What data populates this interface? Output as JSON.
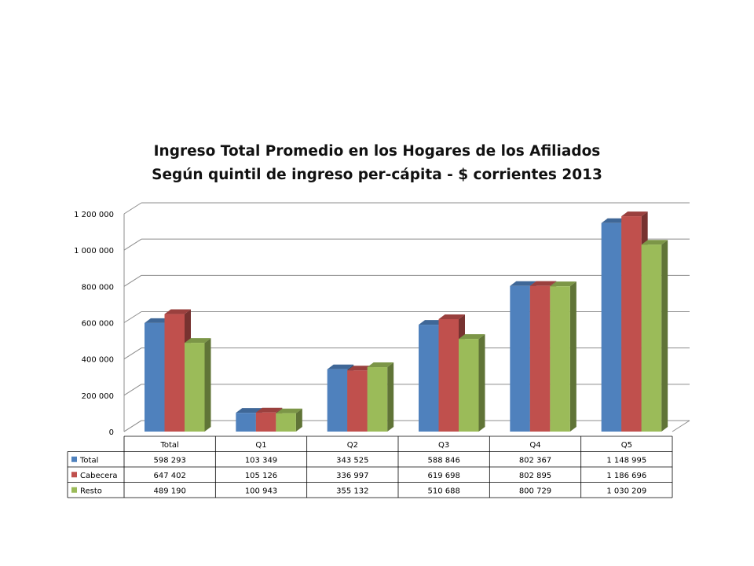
{
  "chart_data": {
    "type": "bar",
    "title": "Ingreso Total Promedio en los Hogares de  los Afiliados",
    "subtitle": "Según quintil de ingreso per-cápita - $ corrientes 2013",
    "categories": [
      "Total",
      "Q1",
      "Q2",
      "Q3",
      "Q4",
      "Q5"
    ],
    "series": [
      {
        "name": "Total",
        "color": "#4F81BD",
        "values": [
          598293,
          103349,
          343525,
          588846,
          802367,
          1148995
        ]
      },
      {
        "name": "Cabecera",
        "color": "#C0504D",
        "values": [
          647402,
          105126,
          336997,
          619698,
          802895,
          1186696
        ]
      },
      {
        "name": "Resto",
        "color": "#9BBB59",
        "values": [
          489190,
          100943,
          355132,
          510688,
          800729,
          1030209
        ]
      }
    ],
    "ylim": [
      0,
      1200000
    ],
    "yticks": [
      0,
      200000,
      400000,
      600000,
      800000,
      1000000,
      1200000
    ],
    "ytick_labels": [
      "0",
      "200 000",
      "400 000",
      "600 000",
      "800 000",
      "1 000 000",
      "1 200 000"
    ],
    "table": {
      "rows": [
        [
          "598 293",
          "103 349",
          "343 525",
          "588 846",
          "802 367",
          "1 148 995"
        ],
        [
          "647 402",
          "105 126",
          "336 997",
          "619 698",
          "802 895",
          "1 186 696"
        ],
        [
          "489 190",
          "100 943",
          "355 132",
          "510 688",
          "800 729",
          "1 030 209"
        ]
      ]
    },
    "grid": true,
    "legend": "data-table",
    "style": "3d-clustered-column"
  }
}
